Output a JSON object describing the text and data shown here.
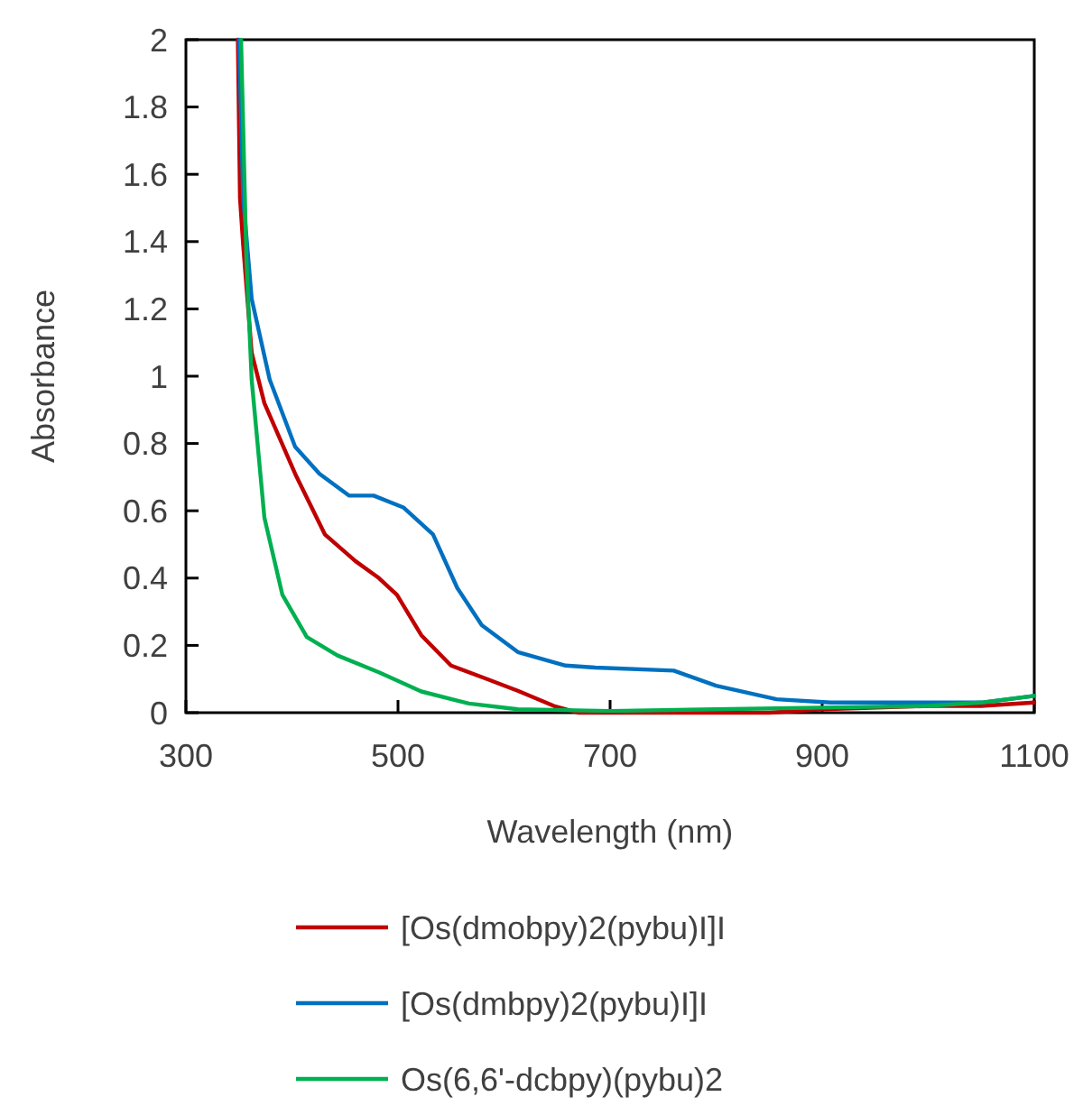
{
  "chart_data": {
    "type": "line",
    "xlabel": "Wavelength (nm)",
    "ylabel": "Absorbance",
    "xlim": [
      300,
      1100
    ],
    "xticks": [
      300,
      500,
      700,
      900,
      1100
    ],
    "ylim": [
      0,
      2
    ],
    "yticks": [
      0,
      0.2,
      0.4,
      0.6,
      0.8,
      1,
      1.2,
      1.4,
      1.6,
      1.8,
      2
    ],
    "grid": false,
    "legend": "bottom",
    "marker": "none",
    "line_style": "solid",
    "series": [
      {
        "name": "[Os(dmobpy)2(pybu)I]I",
        "color": "#c00000",
        "x": [
          349,
          351,
          354,
          362,
          374,
          403,
          431,
          460,
          482,
          499,
          522,
          550,
          584,
          613,
          647,
          670,
          750,
          850,
          900,
          1000,
          1050,
          1100
        ],
        "values": [
          2,
          1.53,
          1.39,
          1.07,
          0.92,
          0.71,
          0.53,
          0.45,
          0.4,
          0.35,
          0.23,
          0.14,
          0.1,
          0.065,
          0.02,
          0,
          0,
          0,
          0.01,
          0.02,
          0.02,
          0.03
        ]
      },
      {
        "name": "[Os(dmbpy)2(pybu)I]I",
        "color": "#0070c0",
        "x": [
          350,
          354,
          362,
          379,
          403,
          426,
          454,
          477,
          505,
          533,
          556,
          579,
          613,
          658,
          686,
          760,
          800,
          857,
          908,
          1000,
          1050,
          1100
        ],
        "values": [
          2,
          1.53,
          1.23,
          0.99,
          0.79,
          0.71,
          0.645,
          0.645,
          0.61,
          0.53,
          0.37,
          0.26,
          0.18,
          0.14,
          0.134,
          0.125,
          0.08,
          0.04,
          0.03,
          0.03,
          0.03,
          0.05
        ]
      },
      {
        "name": "Os(6,6'-dcbpy)(pybu)2",
        "color": "#00b050",
        "x": [
          352,
          357,
          362,
          374,
          391,
          414,
          443,
          482,
          522,
          567,
          613,
          700,
          800,
          900,
          1000,
          1050,
          1100
        ],
        "values": [
          2,
          1.35,
          0.99,
          0.58,
          0.35,
          0.225,
          0.17,
          0.12,
          0.063,
          0.027,
          0.01,
          0.005,
          0.01,
          0.015,
          0.02,
          0.03,
          0.05
        ]
      }
    ]
  }
}
